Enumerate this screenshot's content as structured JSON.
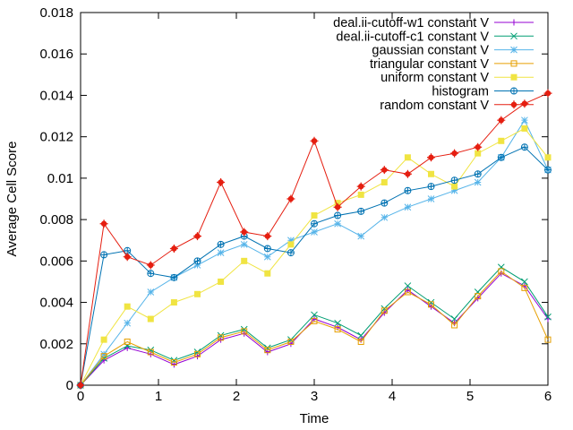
{
  "chart_data": {
    "type": "line",
    "xlabel": "Time",
    "ylabel": "Average Cell Score",
    "xlim": [
      0,
      6
    ],
    "ylim": [
      0,
      0.018
    ],
    "xticks": [
      "0",
      "1",
      "2",
      "3",
      "4",
      "5",
      "6"
    ],
    "yticks": [
      "0",
      "0.002",
      "0.004",
      "0.006",
      "0.008",
      "0.01",
      "0.012",
      "0.014",
      "0.016",
      "0.018"
    ],
    "grid": false,
    "legend_position": "top-right",
    "series": [
      {
        "name": "deal.ii-cutoff-w1 constant V",
        "color": "#9400d3",
        "marker": "plus",
        "x": [
          0.0,
          0.3,
          0.6,
          0.9,
          1.2,
          1.5,
          1.8,
          2.1,
          2.4,
          2.7,
          3.0,
          3.3,
          3.6,
          3.9,
          4.2,
          4.5,
          4.8,
          5.1,
          5.4,
          5.7,
          6.0
        ],
        "y": [
          0.0,
          0.0012,
          0.0018,
          0.0015,
          0.001,
          0.0014,
          0.0022,
          0.0025,
          0.0016,
          0.002,
          0.0032,
          0.0028,
          0.0022,
          0.0035,
          0.0046,
          0.0038,
          0.003,
          0.0042,
          0.0054,
          0.0048,
          0.0032
        ]
      },
      {
        "name": "deal.ii-cutoff-c1 constant V",
        "color": "#009e73",
        "marker": "cross",
        "x": [
          0.0,
          0.3,
          0.6,
          0.9,
          1.2,
          1.5,
          1.8,
          2.1,
          2.4,
          2.7,
          3.0,
          3.3,
          3.6,
          3.9,
          4.2,
          4.5,
          4.8,
          5.1,
          5.4,
          5.7,
          6.0
        ],
        "y": [
          0.0,
          0.0013,
          0.0019,
          0.0017,
          0.0012,
          0.0016,
          0.0024,
          0.0027,
          0.0018,
          0.0022,
          0.0034,
          0.003,
          0.0024,
          0.0037,
          0.0048,
          0.004,
          0.0032,
          0.0045,
          0.0057,
          0.005,
          0.0033
        ]
      },
      {
        "name": "gaussian constant V",
        "color": "#56b4e9",
        "marker": "star",
        "x": [
          0.0,
          0.3,
          0.6,
          0.9,
          1.2,
          1.5,
          1.8,
          2.1,
          2.4,
          2.7,
          3.0,
          3.3,
          3.6,
          3.9,
          4.2,
          4.5,
          4.8,
          5.1,
          5.4,
          5.7,
          6.0
        ],
        "y": [
          0.0,
          0.0015,
          0.003,
          0.0045,
          0.0052,
          0.0058,
          0.0064,
          0.0068,
          0.0062,
          0.007,
          0.0074,
          0.0078,
          0.0072,
          0.0081,
          0.0086,
          0.009,
          0.0094,
          0.0098,
          0.011,
          0.0128,
          0.0104
        ]
      },
      {
        "name": "triangular constant V",
        "color": "#e69f00",
        "marker": "square-open",
        "x": [
          0.0,
          0.3,
          0.6,
          0.9,
          1.2,
          1.5,
          1.8,
          2.1,
          2.4,
          2.7,
          3.0,
          3.3,
          3.6,
          3.9,
          4.2,
          4.5,
          4.8,
          5.1,
          5.4,
          5.7,
          6.0
        ],
        "y": [
          0.0,
          0.0014,
          0.0021,
          0.0016,
          0.0011,
          0.0015,
          0.0023,
          0.0026,
          0.0017,
          0.0021,
          0.0031,
          0.0027,
          0.0021,
          0.0036,
          0.0045,
          0.0039,
          0.0029,
          0.0043,
          0.0055,
          0.0047,
          0.0022
        ]
      },
      {
        "name": "uniform constant V",
        "color": "#f0e442",
        "marker": "square-filled",
        "x": [
          0.0,
          0.3,
          0.6,
          0.9,
          1.2,
          1.5,
          1.8,
          2.1,
          2.4,
          2.7,
          3.0,
          3.3,
          3.6,
          3.9,
          4.2,
          4.5,
          4.8,
          5.1,
          5.4,
          5.7,
          6.0
        ],
        "y": [
          0.0,
          0.0022,
          0.0038,
          0.0032,
          0.004,
          0.0044,
          0.005,
          0.006,
          0.0054,
          0.0068,
          0.0082,
          0.0088,
          0.0092,
          0.0098,
          0.011,
          0.0102,
          0.0096,
          0.0112,
          0.0118,
          0.0124,
          0.011
        ]
      },
      {
        "name": "histogram",
        "color": "#0072b2",
        "marker": "circle-plus",
        "x": [
          0.0,
          0.3,
          0.6,
          0.9,
          1.2,
          1.5,
          1.8,
          2.1,
          2.4,
          2.7,
          3.0,
          3.3,
          3.6,
          3.9,
          4.2,
          4.5,
          4.8,
          5.1,
          5.4,
          5.7,
          6.0
        ],
        "y": [
          0.0,
          0.0063,
          0.0065,
          0.0054,
          0.0052,
          0.006,
          0.0068,
          0.0072,
          0.0066,
          0.0064,
          0.0078,
          0.0082,
          0.0084,
          0.0088,
          0.0094,
          0.0096,
          0.0099,
          0.0102,
          0.011,
          0.0115,
          0.0104
        ]
      },
      {
        "name": "random constant V",
        "color": "#e51e10",
        "marker": "star-filled",
        "x": [
          0.0,
          0.3,
          0.6,
          0.9,
          1.2,
          1.5,
          1.8,
          2.1,
          2.4,
          2.7,
          3.0,
          3.3,
          3.6,
          3.9,
          4.2,
          4.5,
          4.8,
          5.1,
          5.4,
          5.7,
          6.0
        ],
        "y": [
          0.0,
          0.0078,
          0.0062,
          0.0058,
          0.0066,
          0.0072,
          0.0098,
          0.0074,
          0.0072,
          0.009,
          0.0118,
          0.0086,
          0.0096,
          0.0104,
          0.0102,
          0.011,
          0.0112,
          0.0115,
          0.0128,
          0.0136,
          0.0141
        ]
      }
    ]
  }
}
